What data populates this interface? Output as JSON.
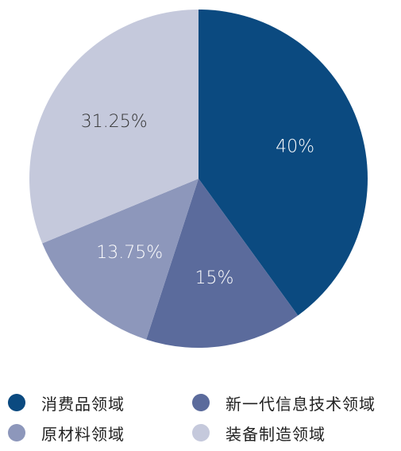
{
  "chart_data": {
    "type": "pie",
    "title": "",
    "slices": [
      {
        "name": "消费品领域",
        "value": 40,
        "label": "40%",
        "color": "#0b4a80",
        "label_color": "#ffffff"
      },
      {
        "name": "新一代信息技术领域",
        "value": 15,
        "label": "15%",
        "color": "#5b6b9c",
        "label_color": "#ffffff"
      },
      {
        "name": "原材料领域",
        "value": 13.75,
        "label": "13.75%",
        "color": "#8d97bb",
        "label_color": "#ffffff"
      },
      {
        "name": "装备制造领域",
        "value": 31.25,
        "label": "31.25%",
        "color": "#c5c9dc",
        "label_color": "#333333"
      }
    ],
    "legend_placement": "bottom"
  },
  "legend": {
    "items": [
      {
        "label": "消费品领域",
        "color": "#0b4a80"
      },
      {
        "label": "新一代信息技术领域",
        "color": "#5b6b9c"
      },
      {
        "label": "原材料领域",
        "color": "#8d97bb"
      },
      {
        "label": "装备制造领域",
        "color": "#c5c9dc"
      }
    ]
  }
}
